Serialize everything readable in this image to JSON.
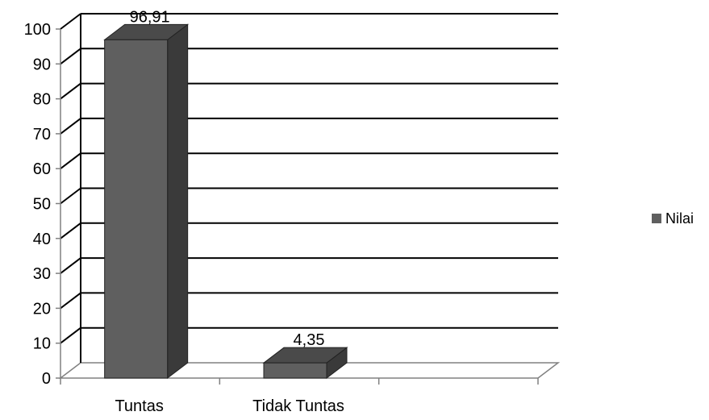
{
  "chart_data": {
    "type": "bar",
    "categories": [
      "Tuntas",
      "Tidak Tuntas",
      ""
    ],
    "series": [
      {
        "name": "Nilai",
        "values": [
          96.91,
          4.35,
          null
        ],
        "data_labels": [
          "96,91",
          "4,35",
          ""
        ]
      }
    ],
    "title": "",
    "xlabel": "",
    "ylabel": "",
    "ylim": [
      0,
      100
    ],
    "yticks": [
      "0",
      "10",
      "20",
      "30",
      "40",
      "50",
      "60",
      "70",
      "80",
      "90",
      "100"
    ],
    "grid": true,
    "legend_position": "right",
    "colors": {
      "bar_front": "#5f5f5f",
      "bar_side": "#3a3a3a",
      "bar_top": "#4a4a4a",
      "grid": "#000000",
      "axis": "#808080"
    }
  }
}
